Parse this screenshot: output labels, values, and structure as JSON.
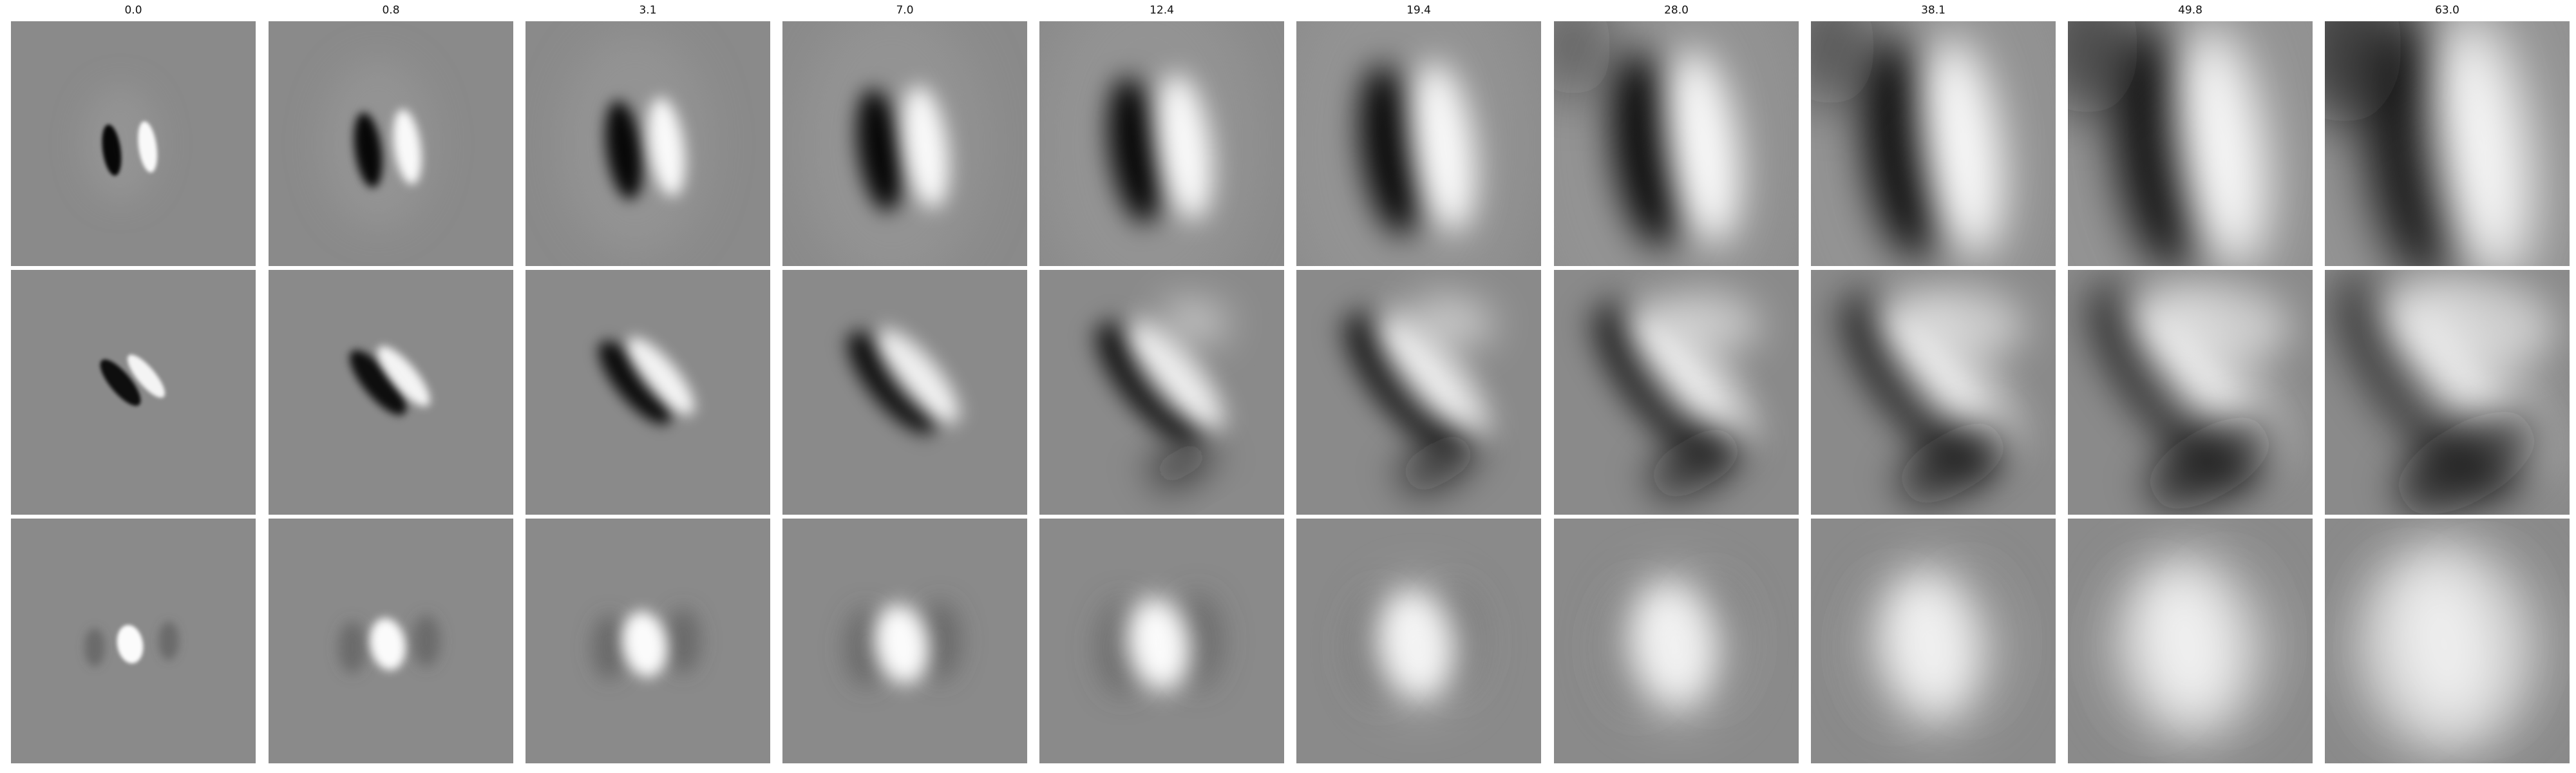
{
  "columns": [
    {
      "label": "0.0"
    },
    {
      "label": "0.8"
    },
    {
      "label": "3.1"
    },
    {
      "label": "7.0"
    },
    {
      "label": "12.4"
    },
    {
      "label": "19.4"
    },
    {
      "label": "28.0"
    },
    {
      "label": "38.1"
    },
    {
      "label": "49.8"
    },
    {
      "label": "63.0"
    }
  ],
  "rows": [
    {
      "pattern": "vertical-edge"
    },
    {
      "pattern": "diagonal-edge"
    },
    {
      "pattern": "center-blob"
    }
  ]
}
